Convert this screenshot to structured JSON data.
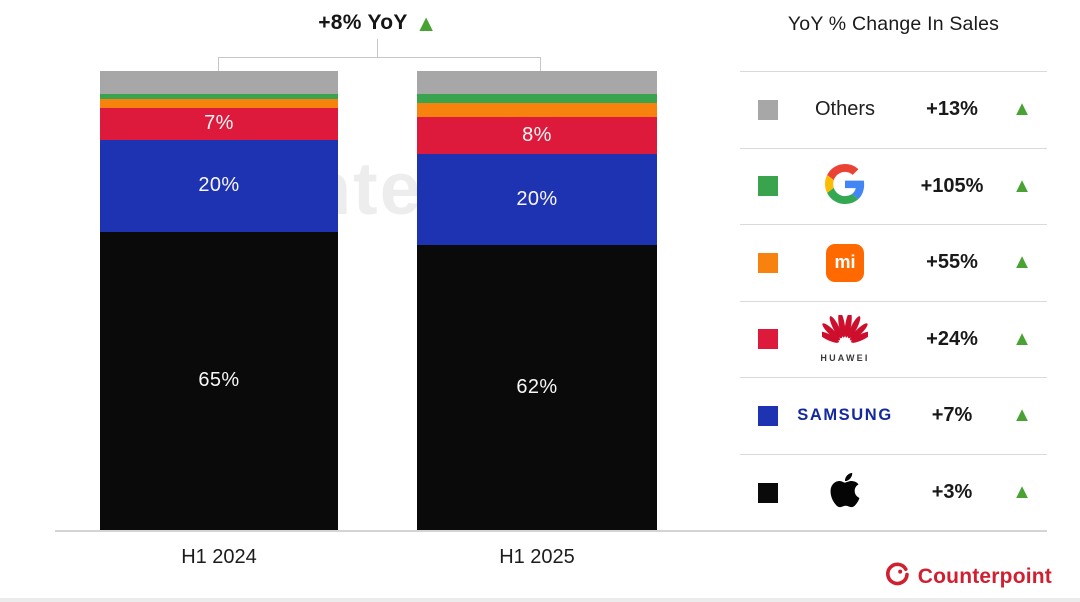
{
  "title": {
    "text": "+8% YoY",
    "arrow": "▲",
    "arrow_color": "#4ba234"
  },
  "watermark": "Counterpoint",
  "chart_data": {
    "type": "bar",
    "stacked": true,
    "title": "+8% YoY",
    "categories": [
      "H1 2024",
      "H1 2025"
    ],
    "series": [
      {
        "name": "Others",
        "color": "#a7a7a7",
        "values": [
          5,
          5
        ],
        "labels": [
          "",
          ""
        ]
      },
      {
        "name": "Google",
        "color": "#3aa34d",
        "values": [
          1,
          2
        ],
        "labels": [
          "",
          ""
        ]
      },
      {
        "name": "Xiaomi",
        "color": "#f8820e",
        "values": [
          2,
          3
        ],
        "labels": [
          "",
          ""
        ]
      },
      {
        "name": "Huawei",
        "color": "#dd1a3b",
        "values": [
          7,
          8
        ],
        "labels": [
          "7%",
          "8%"
        ]
      },
      {
        "name": "Samsung",
        "color": "#1e33b2",
        "values": [
          20,
          20
        ],
        "labels": [
          "20%",
          "20%"
        ]
      },
      {
        "name": "Apple",
        "color": "#0a0a0a",
        "values": [
          65,
          62
        ],
        "labels": [
          "65%",
          "62%"
        ]
      }
    ],
    "series_order": "top-to-bottom",
    "ylim": [
      0,
      100
    ],
    "grid": false,
    "legend_position": "right"
  },
  "legend": {
    "title": "YoY % Change In Sales",
    "rows": [
      {
        "brand": "Others",
        "swatch": "#a7a7a7",
        "change": "+13%",
        "arrow": "▲",
        "logo": "others-text"
      },
      {
        "brand": "Google",
        "swatch": "#3aa34d",
        "change": "+105%",
        "arrow": "▲",
        "logo": "google-g-logo"
      },
      {
        "brand": "Xiaomi",
        "swatch": "#f8820e",
        "change": "+55%",
        "arrow": "▲",
        "logo": "xiaomi-mi-logo",
        "logo_text": "mi"
      },
      {
        "brand": "Huawei",
        "swatch": "#dd1a3b",
        "change": "+24%",
        "arrow": "▲",
        "logo": "huawei-flower-logo",
        "logo_text": "HUAWEI"
      },
      {
        "brand": "Samsung",
        "swatch": "#1e33b2",
        "change": "+7%",
        "arrow": "▲",
        "logo": "samsung-wordmark",
        "logo_text": "SAMSUNG"
      },
      {
        "brand": "Apple",
        "swatch": "#0a0a0a",
        "change": "+3%",
        "arrow": "▲",
        "logo": "apple-logo"
      }
    ]
  },
  "footer": {
    "brand": "Counterpoint",
    "color": "#d02030"
  }
}
